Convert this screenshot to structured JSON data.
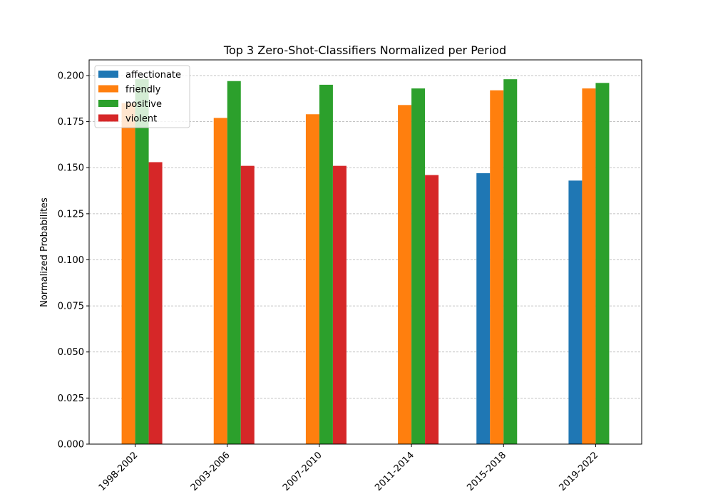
{
  "chart_data": {
    "type": "bar",
    "title": "Top 3 Zero-Shot-Classifiers Normalized per Period",
    "xlabel": "",
    "ylabel": "Normalized Probabilites",
    "categories": [
      "1998-2002",
      "2003-2006",
      "2007-2010",
      "2011-2014",
      "2015-2018",
      "2019-2022"
    ],
    "series": [
      {
        "name": "affectionate",
        "color": "#1f77b4",
        "values": [
          null,
          null,
          null,
          null,
          0.147,
          0.143
        ]
      },
      {
        "name": "friendly",
        "color": "#ff7f0e",
        "values": [
          0.185,
          0.177,
          0.179,
          0.184,
          0.192,
          0.193
        ]
      },
      {
        "name": "positive",
        "color": "#2ca02c",
        "values": [
          0.198,
          0.197,
          0.195,
          0.193,
          0.198,
          0.196
        ]
      },
      {
        "name": "violent",
        "color": "#d62728",
        "values": [
          0.153,
          0.151,
          0.151,
          0.146,
          null,
          null
        ]
      }
    ],
    "ylim": [
      0,
      0.2085
    ],
    "yticks": [
      "0.000",
      "0.025",
      "0.050",
      "0.075",
      "0.100",
      "0.125",
      "0.150",
      "0.175",
      "0.200"
    ],
    "ytick_values": [
      0,
      0.025,
      0.05,
      0.075,
      0.1,
      0.125,
      0.15,
      0.175,
      0.2
    ],
    "grid": "horizontal dashed",
    "legend_position": "upper-left",
    "xtick_rotation": 45
  }
}
